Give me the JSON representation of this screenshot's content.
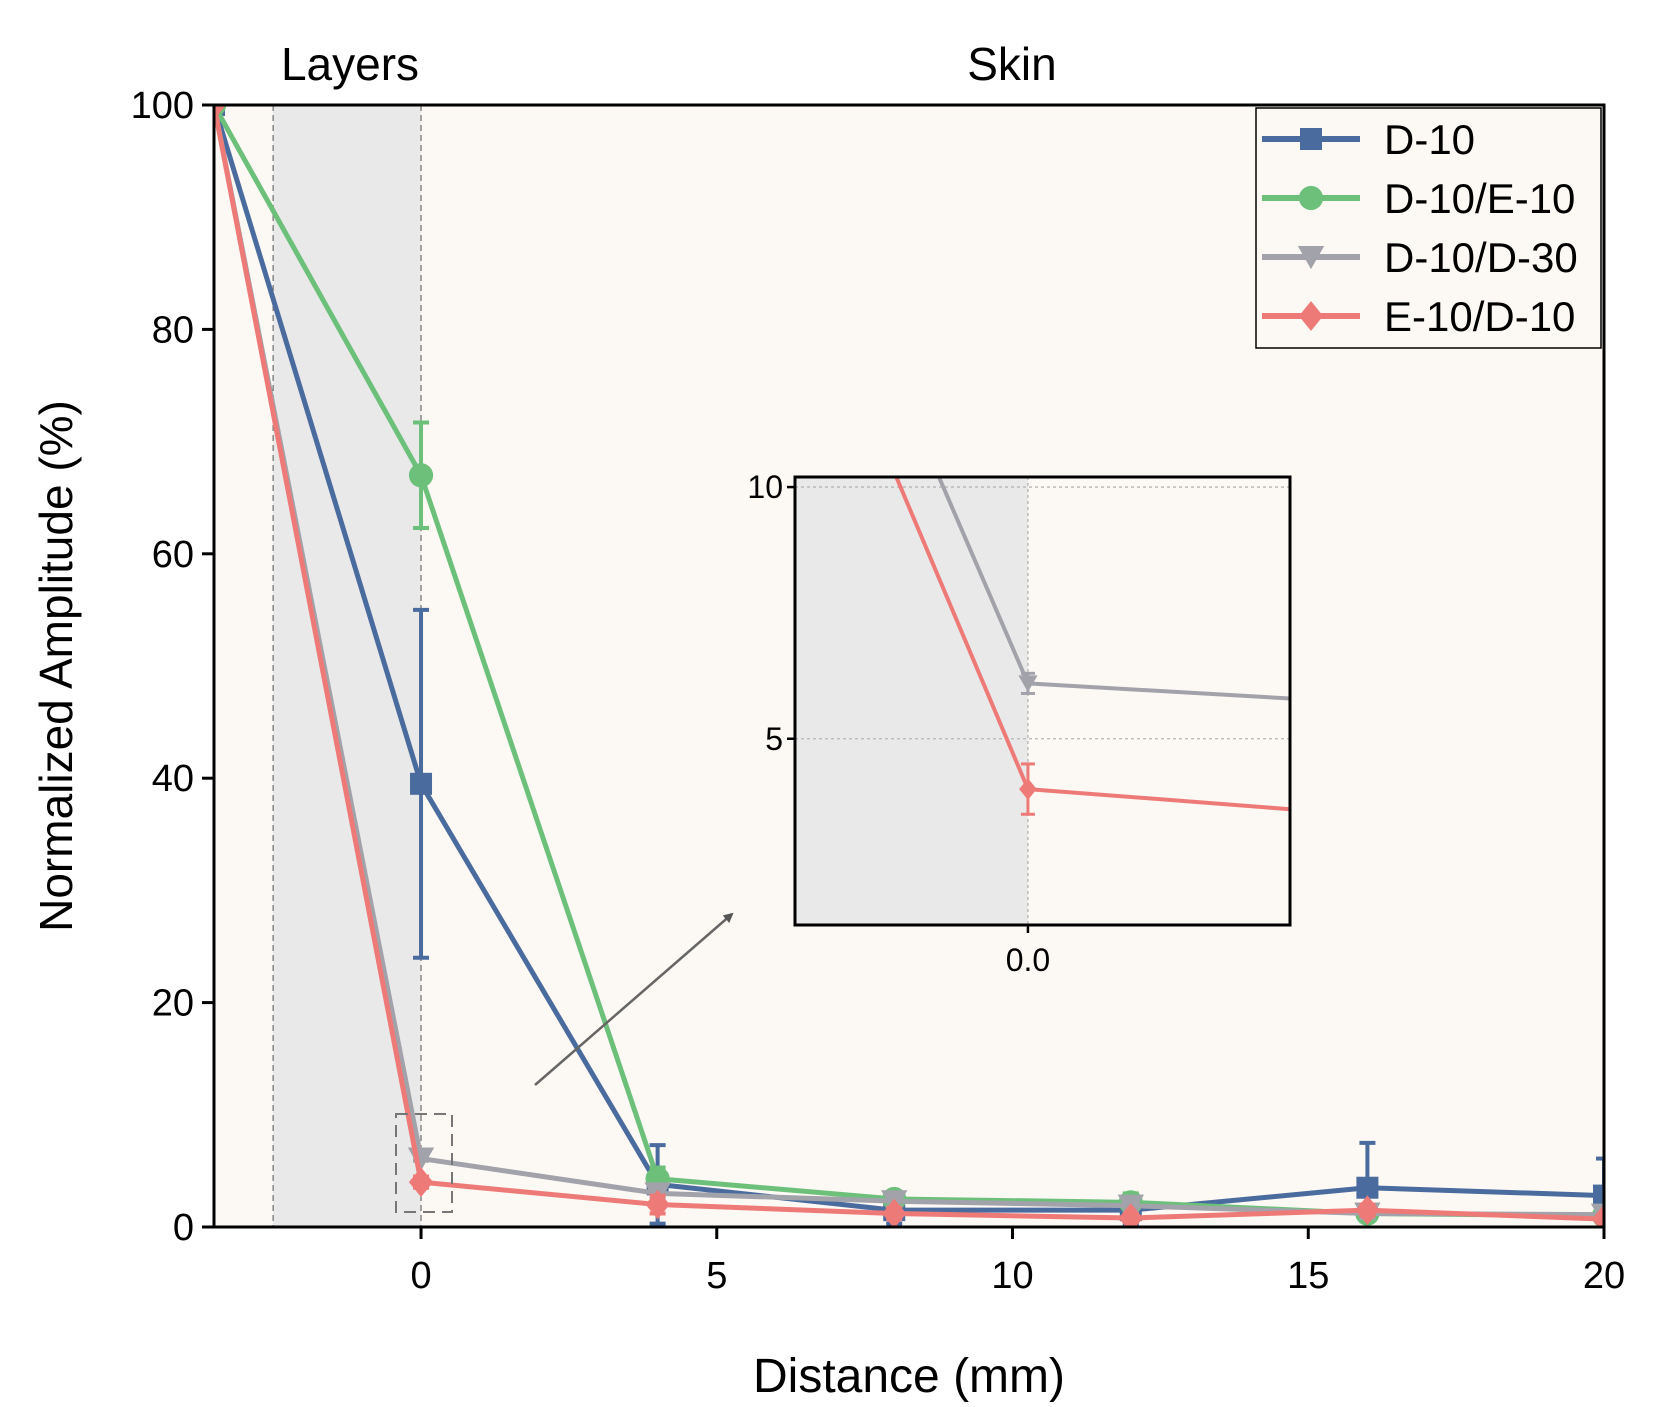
{
  "chart_data": {
    "type": "line",
    "xlabel": "Distance (mm)",
    "ylabel": "Normalized Amplitude (%)",
    "xlim": [
      -3.5,
      20
    ],
    "ylim": [
      0,
      100
    ],
    "xticks": [
      0,
      5,
      10,
      15,
      20
    ],
    "yticks": [
      0,
      20,
      40,
      60,
      80,
      100
    ],
    "region_labels": {
      "layers": "Layers",
      "skin": "Skin"
    },
    "layers_region": [
      -2.5,
      0
    ],
    "legend_position": "top-right",
    "grid": false,
    "series": [
      {
        "name": "D-10",
        "color": "#4a6b9e",
        "marker": "square",
        "points": [
          {
            "x": -3.5,
            "y": 100,
            "err": 0
          },
          {
            "x": 0,
            "y": 39.5,
            "err": 15.5
          },
          {
            "x": 4,
            "y": 3.8,
            "err": 3.5
          },
          {
            "x": 8,
            "y": 1.5,
            "err": 1.2
          },
          {
            "x": 12,
            "y": 1.5,
            "err": 1.2
          },
          {
            "x": 16,
            "y": 3.5,
            "err": 4
          },
          {
            "x": 20,
            "y": 2.8,
            "err": 3.3
          }
        ]
      },
      {
        "name": "D-10/E-10",
        "color": "#6cc07a",
        "marker": "circle",
        "points": [
          {
            "x": -3.5,
            "y": 100,
            "err": 0
          },
          {
            "x": 0,
            "y": 67,
            "err": 4.7
          },
          {
            "x": 4,
            "y": 4.3,
            "err": 1
          },
          {
            "x": 8,
            "y": 2.5,
            "err": 0.5
          },
          {
            "x": 12,
            "y": 2.2,
            "err": 0.8
          },
          {
            "x": 16,
            "y": 1.2,
            "err": 0.4
          },
          {
            "x": 20,
            "y": 1,
            "err": 0.4
          }
        ]
      },
      {
        "name": "D-10/D-30",
        "color": "#a2a2aa",
        "marker": "triangle-down",
        "points": [
          {
            "x": -3.5,
            "y": 100,
            "err": 0
          },
          {
            "x": 0,
            "y": 6.1,
            "err": 0.2
          },
          {
            "x": 4,
            "y": 3,
            "err": 0.5
          },
          {
            "x": 8,
            "y": 2.3,
            "err": 0.5
          },
          {
            "x": 12,
            "y": 1.9,
            "err": 0.4
          },
          {
            "x": 16,
            "y": 1.2,
            "err": 0.4
          },
          {
            "x": 20,
            "y": 1.1,
            "err": 0.3
          }
        ]
      },
      {
        "name": "E-10/D-10",
        "color": "#ee7a78",
        "marker": "diamond",
        "points": [
          {
            "x": -3.5,
            "y": 100,
            "err": 0
          },
          {
            "x": 0,
            "y": 4,
            "err": 0.5
          },
          {
            "x": 4,
            "y": 2,
            "err": 0.8
          },
          {
            "x": 8,
            "y": 1.2,
            "err": 0.5
          },
          {
            "x": 12,
            "y": 0.8,
            "err": 0.3
          },
          {
            "x": 16,
            "y": 1.5,
            "err": 0.5
          },
          {
            "x": 20,
            "y": 0.7,
            "err": 0.3
          }
        ]
      }
    ],
    "inset": {
      "xlim": [
        -0.4,
        0.45
      ],
      "ylim": [
        1.3,
        10.2
      ],
      "xticks": [
        0
      ],
      "xtick_labels": [
        "0.0"
      ],
      "yticks": [
        5,
        10
      ],
      "series": [
        "D-10/D-30",
        "E-10/D-10"
      ],
      "end_values": {
        "D-10/D-30": 5.8,
        "E-10/D-10": 3.6
      }
    }
  },
  "colors": {
    "plot_background": "#fcf8f3",
    "layers_shade": "#e9e9e9"
  }
}
